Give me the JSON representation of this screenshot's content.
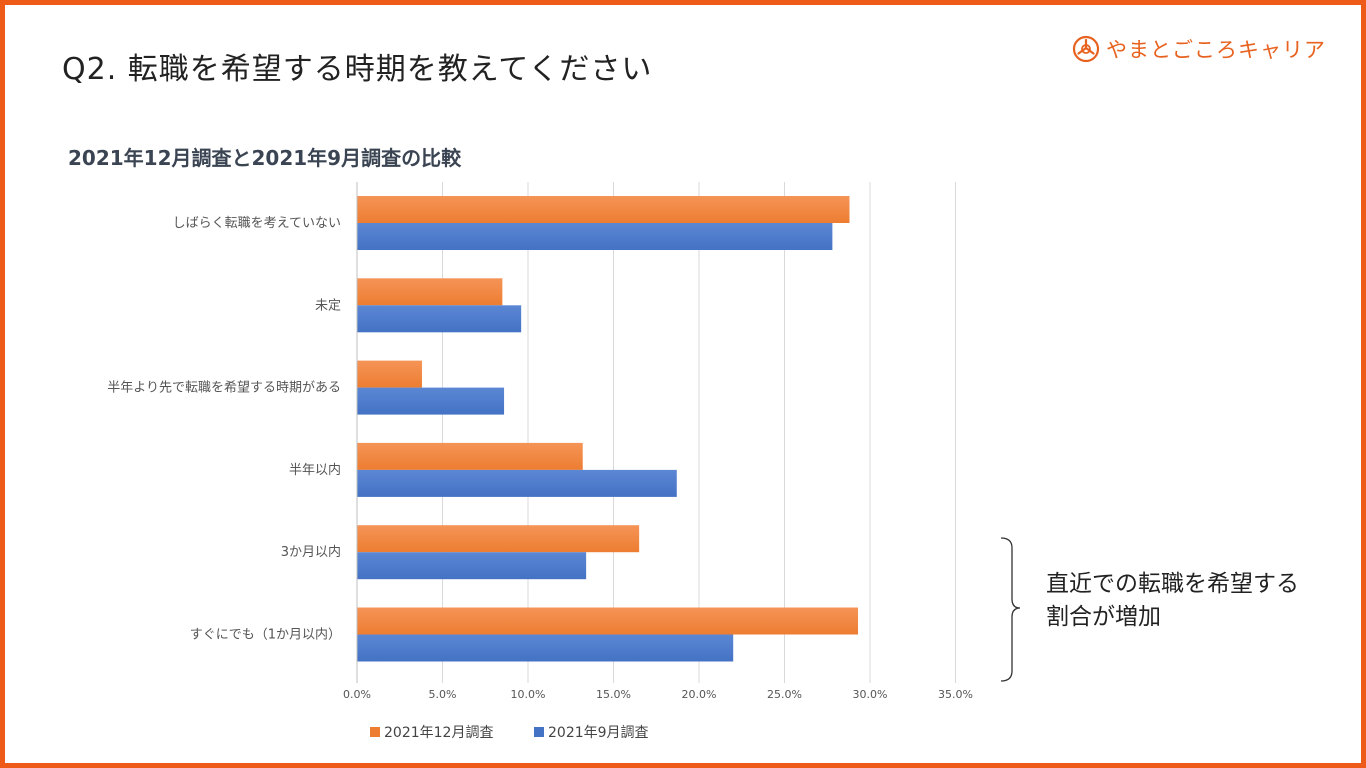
{
  "slide": {
    "title": "Q2. 転職を希望する時期を教えてください",
    "brand": "やまとごころキャリア",
    "annotation_line1": "直近での転職を希望する",
    "annotation_line2": "割合が増加"
  },
  "colors": {
    "accent": "#ee5a17",
    "series_dec": "#ed7d31",
    "series_sep": "#4472c4",
    "grid": "#d9d9d9"
  },
  "chart_data": {
    "type": "bar",
    "orientation": "horizontal",
    "title": "2021年12月調査と2021年9月調査の比較",
    "categories": [
      "しばらく転職を考えていない",
      "未定",
      "半年より先で転職を希望する時期がある",
      "半年以内",
      "3か月以内",
      "すぐにでも（1か月以内）"
    ],
    "series": [
      {
        "name": "2021年12月調査",
        "values": [
          28.8,
          8.5,
          3.8,
          13.2,
          16.5,
          29.3
        ]
      },
      {
        "name": "2021年9月調査",
        "values": [
          27.8,
          9.6,
          8.6,
          18.7,
          13.4,
          22.0
        ]
      }
    ],
    "xlim": [
      0,
      35
    ],
    "xticks": [
      "0.0%",
      "5.0%",
      "10.0%",
      "15.0%",
      "20.0%",
      "25.0%",
      "30.0%",
      "35.0%"
    ],
    "grid": true,
    "legend_position": "bottom"
  }
}
